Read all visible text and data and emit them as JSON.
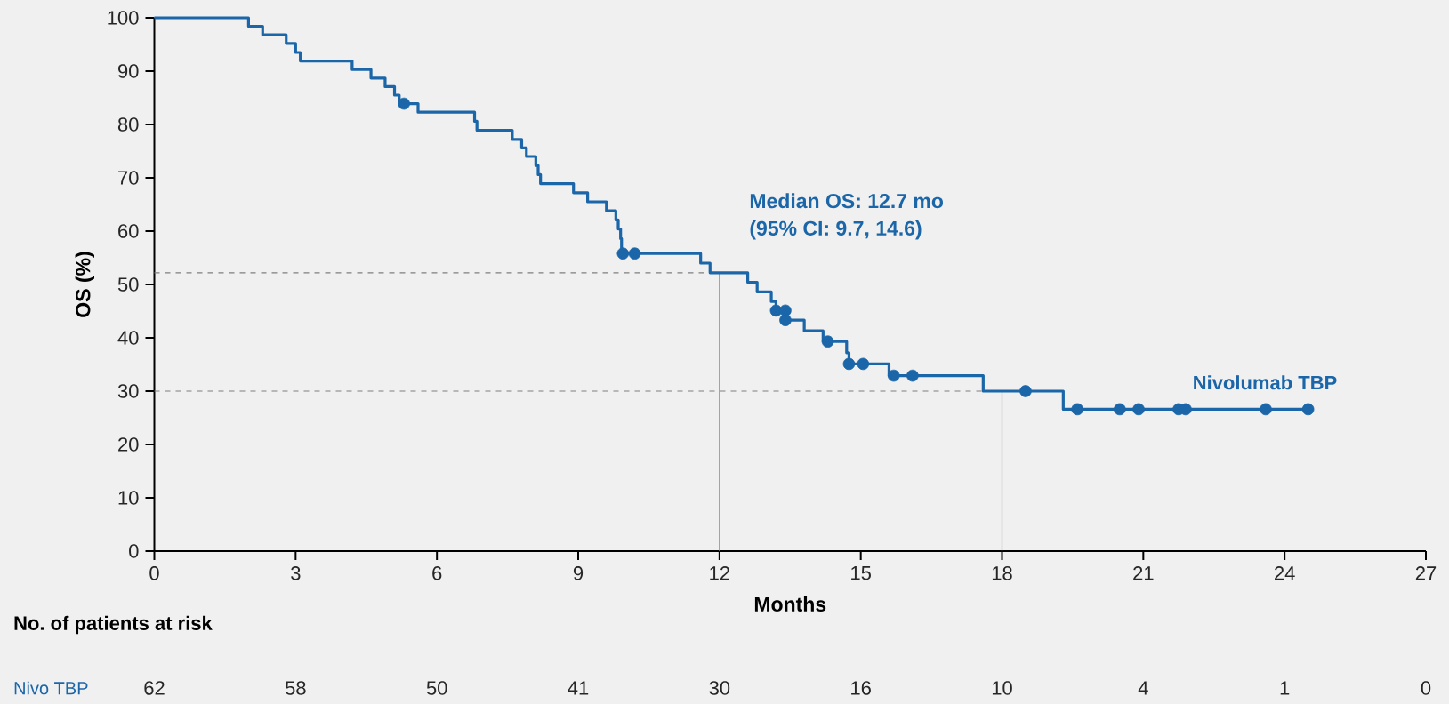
{
  "chart_data": {
    "type": "step",
    "xlabel": "Months",
    "ylabel": "OS (%)",
    "xlim": [
      0,
      27
    ],
    "xticks": [
      0,
      3,
      6,
      9,
      12,
      15,
      18,
      21,
      24,
      27
    ],
    "ylim": [
      0,
      100
    ],
    "yticks": [
      0,
      10,
      20,
      30,
      40,
      50,
      60,
      70,
      80,
      90,
      100
    ],
    "grid": false,
    "series": [
      {
        "name": "Nivolumab TBP",
        "color": "#1b66a8",
        "marker": "none",
        "line_style": "solid",
        "x": [
          0,
          2.0,
          2.3,
          2.8,
          3.0,
          3.1,
          4.2,
          4.6,
          4.9,
          5.1,
          5.2,
          5.6,
          6.8,
          6.85,
          7.6,
          7.8,
          7.9,
          8.1,
          8.15,
          8.2,
          8.9,
          9.2,
          9.6,
          9.8,
          9.85,
          9.9,
          9.92,
          11.6,
          11.8,
          12.6,
          12.8,
          13.1,
          13.2,
          13.4,
          13.8,
          14.2,
          14.7,
          14.75,
          15.6,
          17.6,
          19.3,
          24.5
        ],
        "values": [
          100,
          98.4,
          96.8,
          95.2,
          93.5,
          91.9,
          90.3,
          88.7,
          87.1,
          85.5,
          83.9,
          82.3,
          80.6,
          78.9,
          77.2,
          75.6,
          74.0,
          72.3,
          70.6,
          68.9,
          67.2,
          65.5,
          63.8,
          62.1,
          60.4,
          58.6,
          55.8,
          54.0,
          52.2,
          50.4,
          48.6,
          46.8,
          45.1,
          43.3,
          41.3,
          39.3,
          37.2,
          35.1,
          32.9,
          30.0,
          26.6,
          26.6
        ]
      },
      {
        "type": "scatter",
        "color": "#1b66a8",
        "marker": "circle",
        "x": [
          5.3,
          9.95,
          10.2,
          13.2,
          13.4,
          13.4,
          14.3,
          14.75,
          15.05,
          15.7,
          16.1,
          18.5,
          19.6,
          20.5,
          20.9,
          21.75,
          21.9,
          23.6,
          24.5
        ],
        "values": [
          83.9,
          55.8,
          55.8,
          45.1,
          45.1,
          43.3,
          39.3,
          35.1,
          35.1,
          32.9,
          32.9,
          30.0,
          26.6,
          26.6,
          26.6,
          26.6,
          26.6,
          26.6,
          26.6
        ]
      }
    ],
    "ref_lines": [
      {
        "axis": "y",
        "value": 52.2,
        "color": "#7f7f7f",
        "line_style": "dashed"
      },
      {
        "axis": "y",
        "value": 30.0,
        "color": "#7f7f7f",
        "line_style": "dashed"
      },
      {
        "axis": "x",
        "value": 12,
        "color": "#8c8c8c",
        "line_style": "solid"
      },
      {
        "axis": "x",
        "value": 18,
        "color": "#8c8c8c",
        "line_style": "solid"
      }
    ],
    "annotations": [
      "Median OS: 12.7 mo",
      "(95% CI: 9.7, 14.6)",
      "No. of patients at risk",
      "Nivo TBP",
      "62",
      "58",
      "50",
      "41",
      "30",
      "16",
      "10",
      "4",
      "1",
      "0"
    ]
  }
}
